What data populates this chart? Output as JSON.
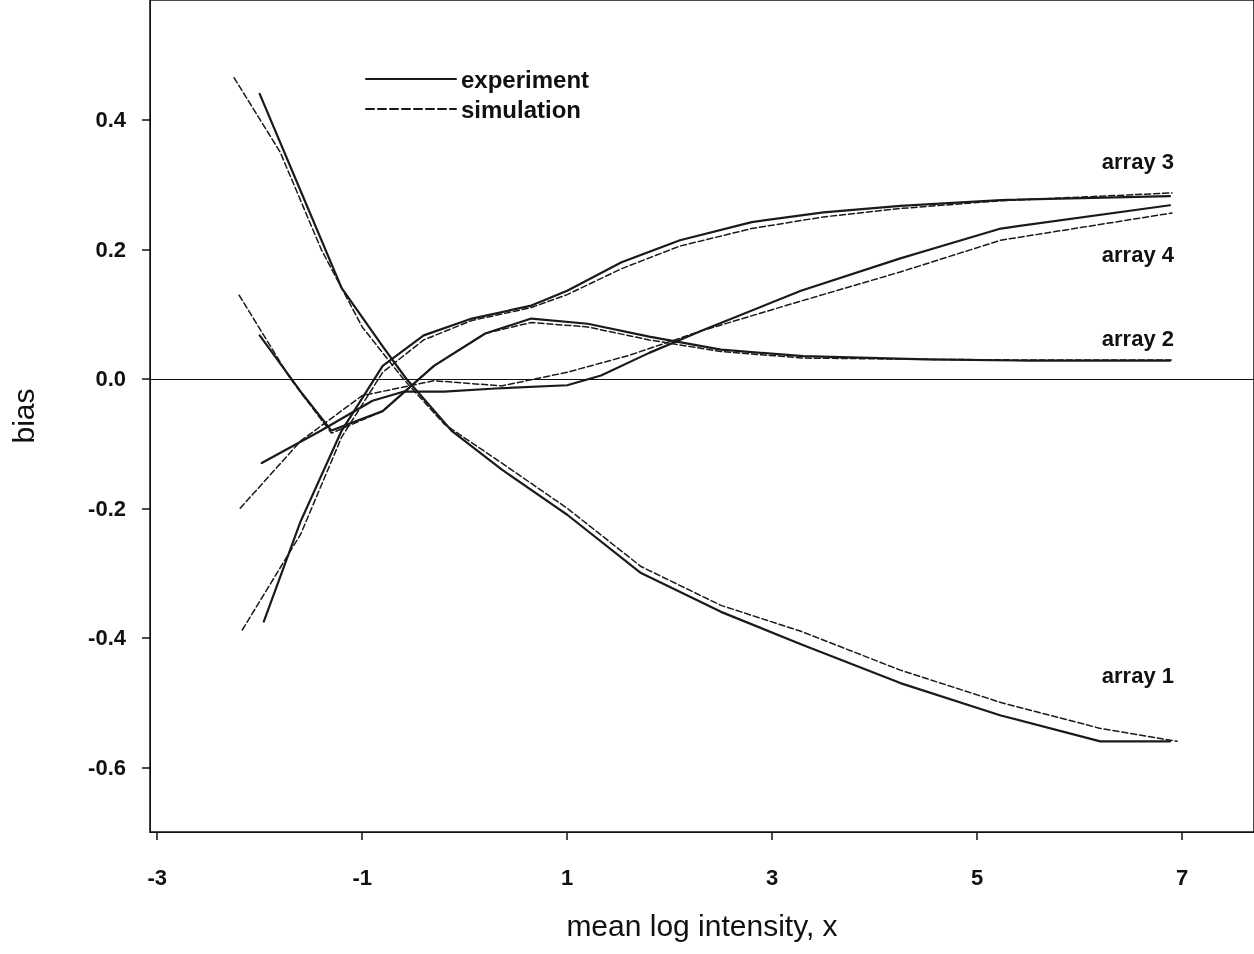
{
  "chart_data": {
    "type": "line",
    "xlabel": "mean log intensity, x",
    "ylabel": "bias",
    "xlim": [
      -3.07,
      7.7
    ],
    "ylim": [
      -0.7,
      0.585
    ],
    "xticks": [
      -3,
      -1,
      1,
      3,
      5,
      7
    ],
    "yticks": [
      {
        "value": -0.6,
        "label": "-0.6"
      },
      {
        "value": -0.4,
        "label": "-0.4"
      },
      {
        "value": -0.2,
        "label": "-0.2"
      },
      {
        "value": 0,
        "label": "0.0"
      },
      {
        "value": 0.2,
        "label": "0.2"
      },
      {
        "value": 0.4,
        "label": "0.4"
      }
    ],
    "grid": false,
    "legend": "top left",
    "marker": "none",
    "ref_lines": [
      {
        "axis": "y",
        "value": 0,
        "label": null
      }
    ],
    "annotations": [
      "array 3",
      "array 4",
      "array 2",
      "array 1"
    ],
    "series": [
      {
        "name": "experiment",
        "color": "#1a1a1a",
        "line_style": "solid",
        "x": [
          -2.0,
          -1.6,
          -1.2,
          -0.8,
          -0.57,
          -0.13,
          0.36,
          1.0,
          1.72,
          2.5,
          3.28,
          4.25,
          5.23,
          6.2,
          6.88
        ],
        "values": [
          0.44,
          0.29,
          0.14,
          0.05,
          0.0,
          -0.08,
          -0.14,
          -0.21,
          -0.3,
          -0.36,
          -0.41,
          -0.47,
          -0.52,
          -0.56,
          -0.56
        ]
      },
      {
        "name": "simulation",
        "color": "#1a1a1a",
        "line_style": "dashed",
        "x": [
          -2.25,
          -1.8,
          -1.4,
          -1.0,
          -0.6,
          -0.2,
          0.36,
          1.0,
          1.72,
          2.5,
          3.28,
          4.25,
          5.23,
          6.2,
          6.95
        ],
        "values": [
          0.465,
          0.35,
          0.2,
          0.08,
          0.0,
          -0.07,
          -0.13,
          -0.2,
          -0.29,
          -0.35,
          -0.39,
          -0.45,
          -0.5,
          -0.54,
          -0.56
        ]
      },
      {
        "color": "#1a1a1a",
        "line_style": "solid",
        "x": [
          -1.96,
          -1.6,
          -1.2,
          -0.8,
          -0.4,
          0.07,
          0.65,
          1.0,
          1.53,
          2.1,
          2.8,
          3.5,
          4.25,
          5.23,
          6.88
        ],
        "values": [
          -0.375,
          -0.22,
          -0.08,
          0.02,
          0.067,
          0.093,
          0.113,
          0.136,
          0.18,
          0.214,
          0.242,
          0.257,
          0.267,
          0.276,
          0.282
        ]
      },
      {
        "color": "#1a1a1a",
        "line_style": "dashed",
        "x": [
          -2.17,
          -1.6,
          -1.2,
          -0.8,
          -0.4,
          0.07,
          0.65,
          1.0,
          1.53,
          2.1,
          2.8,
          3.5,
          4.25,
          5.23,
          6.9
        ],
        "values": [
          -0.388,
          -0.24,
          -0.09,
          0.01,
          0.06,
          0.09,
          0.11,
          0.13,
          0.17,
          0.205,
          0.232,
          0.25,
          0.263,
          0.275,
          0.287
        ]
      },
      {
        "color": "#1a1a1a",
        "line_style": "solid",
        "x": [
          -2.0,
          -1.6,
          -1.3,
          -0.8,
          -0.3,
          0.2,
          0.65,
          1.2,
          1.8,
          2.5,
          3.3,
          4.5,
          5.5,
          6.88
        ],
        "values": [
          0.067,
          -0.02,
          -0.08,
          -0.05,
          0.02,
          0.07,
          0.093,
          0.085,
          0.065,
          0.045,
          0.035,
          0.03,
          0.028,
          0.028
        ]
      },
      {
        "color": "#1a1a1a",
        "line_style": "dashed",
        "x": [
          -2.2,
          -1.7,
          -1.3,
          -0.8,
          -0.3,
          0.2,
          0.65,
          1.2,
          1.8,
          2.5,
          3.3,
          4.5,
          5.5,
          6.9
        ],
        "values": [
          0.129,
          0.0,
          -0.084,
          -0.05,
          0.02,
          0.07,
          0.087,
          0.08,
          0.06,
          0.042,
          0.032,
          0.03,
          0.029,
          0.029
        ]
      },
      {
        "color": "#1a1a1a",
        "line_style": "solid",
        "x": [
          -1.98,
          -1.4,
          -0.9,
          -0.6,
          -0.2,
          0.3,
          1.0,
          1.33,
          1.8,
          2.31,
          3.28,
          4.25,
          5.23,
          6.88
        ],
        "values": [
          -0.13,
          -0.08,
          -0.034,
          -0.02,
          -0.02,
          -0.015,
          -0.01,
          0.005,
          0.04,
          0.074,
          0.136,
          0.186,
          0.232,
          0.268
        ]
      },
      {
        "color": "#1a1a1a",
        "line_style": "dashed",
        "x": [
          -2.19,
          -1.6,
          -1.0,
          -0.3,
          0.36,
          1.0,
          1.6,
          2.31,
          3.28,
          4.25,
          5.23,
          6.9
        ],
        "values": [
          -0.2,
          -0.096,
          -0.026,
          -0.003,
          -0.011,
          0.01,
          0.036,
          0.074,
          0.12,
          0.165,
          0.214,
          0.256
        ]
      }
    ]
  }
}
